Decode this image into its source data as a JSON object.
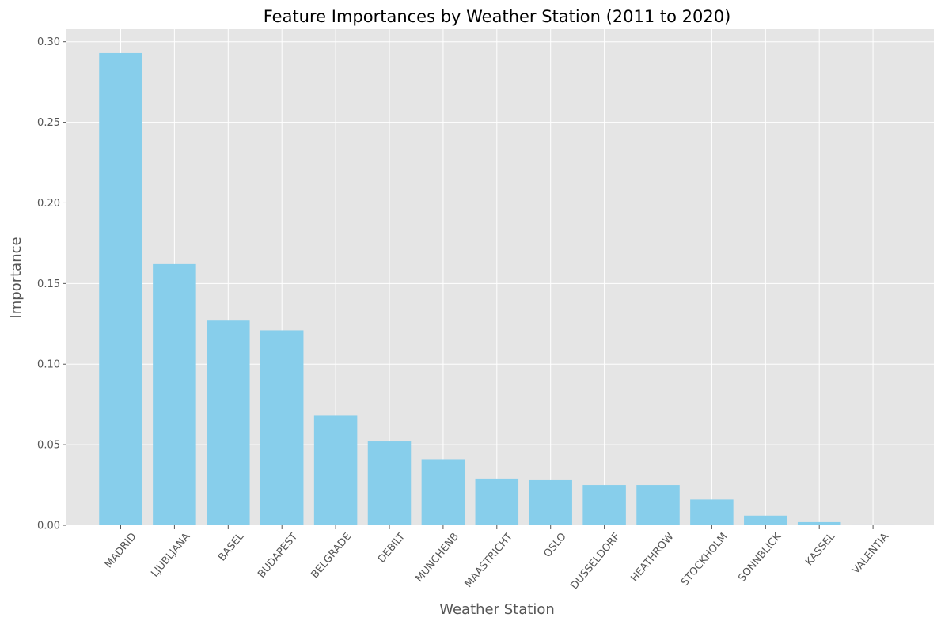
{
  "chart_data": {
    "type": "bar",
    "title": "Feature Importances by Weather Station (2011 to 2020)",
    "xlabel": "Weather Station",
    "ylabel": "Importance",
    "categories": [
      "MADRID",
      "LJUBLJANA",
      "BASEL",
      "BUDAPEST",
      "BELGRADE",
      "DEBILT",
      "MUNCHENB",
      "MAASTRICHT",
      "OSLO",
      "DUSSELDORF",
      "HEATHROW",
      "STOCKHOLM",
      "SONNBLICK",
      "KASSEL",
      "VALENTIA"
    ],
    "values": [
      0.293,
      0.162,
      0.127,
      0.121,
      0.068,
      0.052,
      0.041,
      0.029,
      0.028,
      0.025,
      0.025,
      0.016,
      0.006,
      0.002,
      0.0005
    ],
    "yticks": [
      0.0,
      0.05,
      0.1,
      0.15,
      0.2,
      0.25,
      0.3
    ],
    "ytick_labels": [
      "0.00",
      "0.05",
      "0.10",
      "0.15",
      "0.20",
      "0.25",
      "0.30"
    ],
    "ylim": [
      0,
      0.3077
    ],
    "grid": true,
    "colors": {
      "bar": "#87CEEB",
      "plot_background": "#E5E5E5",
      "grid": "#FFFFFF",
      "text": "#555555",
      "title": "#000000"
    }
  }
}
